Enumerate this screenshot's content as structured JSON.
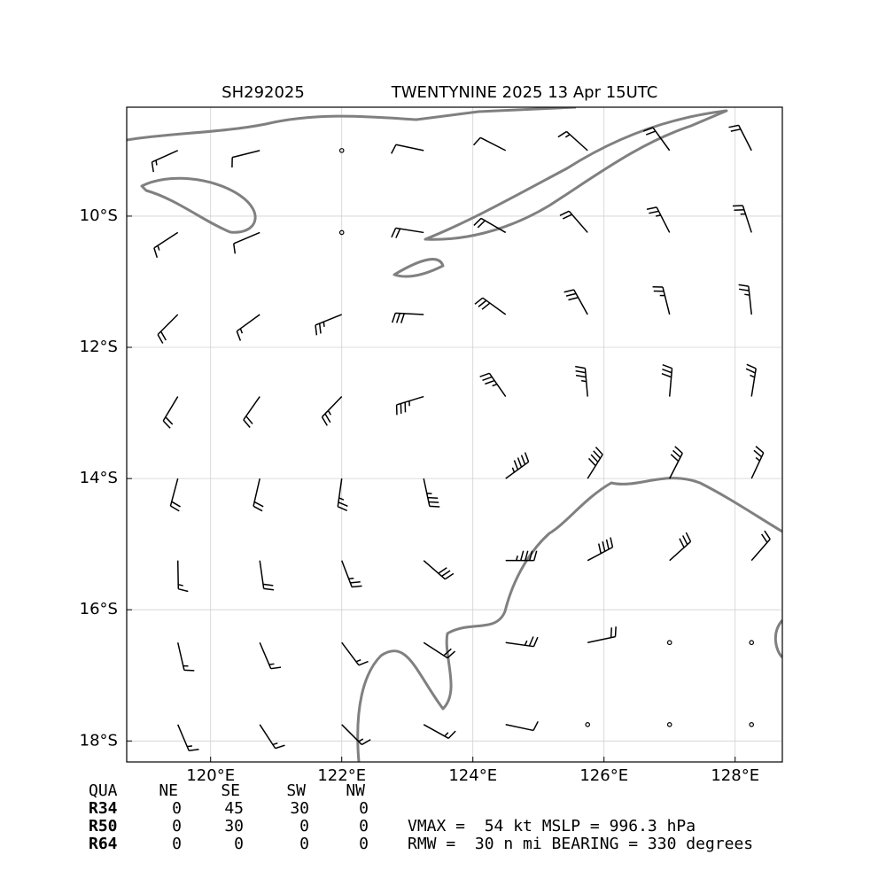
{
  "chart_data": {
    "type": "wind_barb_map",
    "title_id": "SH292025",
    "title": "TWENTYNINE 2025 13 Apr 15UTC",
    "xlim": [
      118.72,
      128.72
    ],
    "ylim": [
      -18.32,
      -8.34
    ],
    "xticks": [
      {
        "value": 120,
        "label": "120°E"
      },
      {
        "value": 122,
        "label": "122°E"
      },
      {
        "value": 124,
        "label": "124°E"
      },
      {
        "value": 126,
        "label": "126°E"
      },
      {
        "value": 128,
        "label": "128°E"
      }
    ],
    "yticks": [
      {
        "value": -10,
        "label": "10°S"
      },
      {
        "value": -12,
        "label": "12°S"
      },
      {
        "value": -14,
        "label": "14°S"
      },
      {
        "value": -16,
        "label": "16°S"
      },
      {
        "value": -18,
        "label": "18°S"
      }
    ],
    "grid": true,
    "coast_color": "#808080",
    "wind": {
      "color": "#000000",
      "lons": [
        119.5,
        120.75,
        122,
        123.25,
        124.5,
        125.75,
        127,
        128.25
      ],
      "lats": [
        -9,
        -10.25,
        -11.5,
        -12.75,
        -14,
        -15.25,
        -16.5,
        -17.75
      ],
      "dir": [
        [
          66,
          76,
          88,
          102,
          117,
          132,
          144,
          153
        ],
        [
          57,
          67,
          80,
          99,
          120,
          139,
          153,
          162
        ],
        [
          45,
          54,
          68,
          93,
          126,
          151,
          166,
          174
        ],
        [
          31,
          35,
          44,
          73,
          145,
          175,
          185,
          189
        ],
        [
          15,
          13,
          8,
          348,
          234,
          212,
          207,
          205
        ],
        [
          359,
          352,
          339,
          311,
          270,
          242,
          228,
          221
        ],
        [
          347,
          337,
          323,
          303,
          278,
          258,
          243,
          234
        ],
        [
          337,
          327,
          315,
          299,
          282,
          266,
          253,
          244
        ]
      ],
      "speed": [
        [
          15,
          10,
          0,
          10,
          10,
          15,
          20,
          20
        ],
        [
          15,
          10,
          0,
          20,
          20,
          20,
          25,
          25
        ],
        [
          20,
          15,
          25,
          30,
          30,
          30,
          25,
          25
        ],
        [
          20,
          20,
          25,
          35,
          35,
          35,
          30,
          25
        ],
        [
          20,
          20,
          25,
          35,
          45,
          40,
          30,
          25
        ],
        [
          15,
          20,
          25,
          30,
          45,
          40,
          30,
          20
        ],
        [
          15,
          15,
          15,
          20,
          25,
          20,
          0,
          0
        ],
        [
          15,
          15,
          15,
          15,
          10,
          0,
          0,
          0
        ]
      ]
    }
  },
  "radii_table": {
    "header": [
      "QUA",
      "NE",
      "SE",
      "SW",
      "NW"
    ],
    "rows": [
      [
        "R34",
        0,
        45,
        30,
        0
      ],
      [
        "R50",
        0,
        30,
        0,
        0
      ],
      [
        "R64",
        0,
        0,
        0,
        0
      ]
    ]
  },
  "info": [
    "VMAX =  54 kt MSLP = 996.3 hPa",
    "RMW =  30 n mi BEARING = 330 degrees"
  ]
}
